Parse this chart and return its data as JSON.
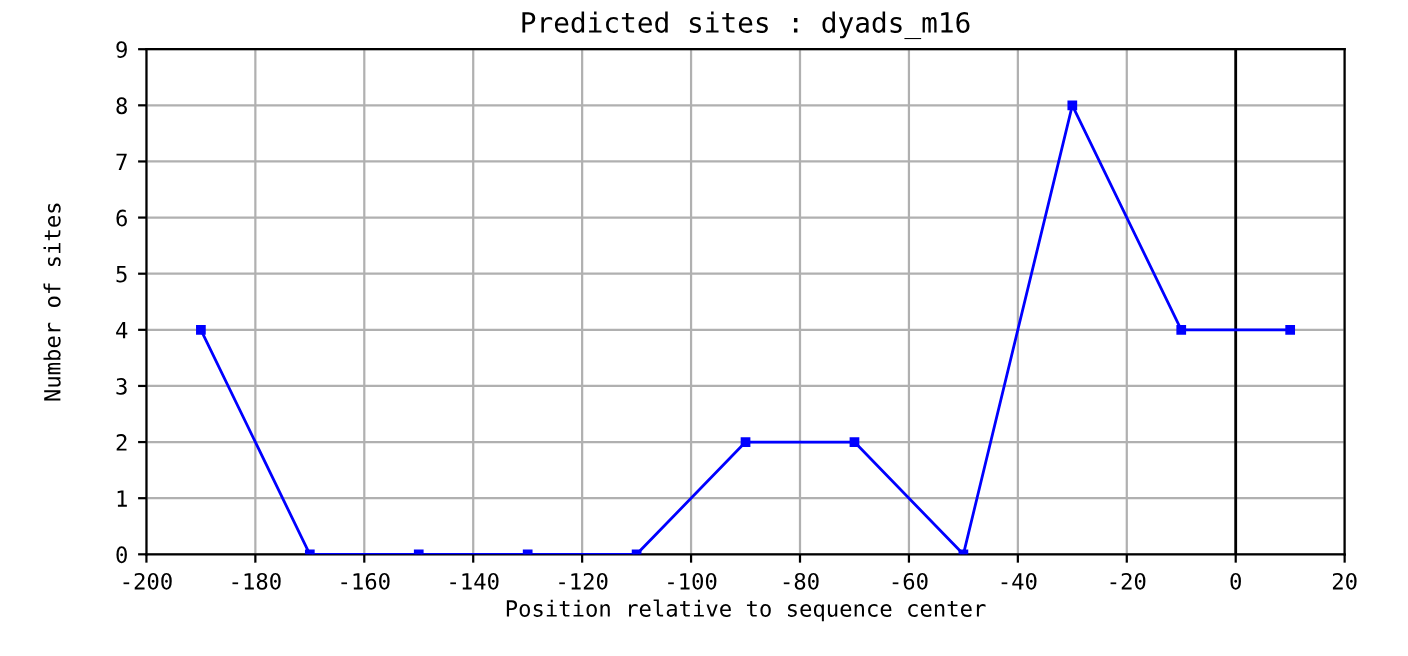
{
  "chart_data": {
    "type": "line",
    "title": "Predicted sites : dyads_m16",
    "xlabel": "Position relative to sequence center",
    "ylabel": "Number of sites",
    "x": [
      -190,
      -170,
      -150,
      -130,
      -110,
      -90,
      -70,
      -50,
      -30,
      -10,
      10
    ],
    "series": [
      {
        "color": "#0000ff",
        "values": [
          4,
          0,
          0,
          0,
          0,
          2,
          2,
          0,
          8,
          4,
          4
        ]
      }
    ],
    "xlim": [
      -200,
      20
    ],
    "xticks": [
      -200,
      -180,
      -160,
      -140,
      -120,
      -100,
      -80,
      -60,
      -40,
      -20,
      0,
      20
    ],
    "ylim": [
      0,
      9
    ],
    "yticks": [
      0,
      1,
      2,
      3,
      4,
      5,
      6,
      7,
      8,
      9
    ],
    "ref_lines": [
      {
        "axis": "x",
        "value": 0,
        "color": "#000000"
      }
    ],
    "grid": true,
    "marker": "square",
    "line_style": "solid",
    "legend": false
  }
}
